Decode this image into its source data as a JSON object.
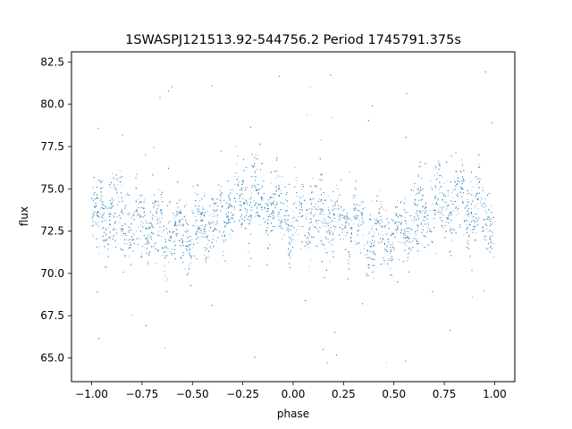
{
  "chart_data": {
    "type": "scatter",
    "title": "1SWASPJ121513.92-544756.2 Period 1745791.375s",
    "xlabel": "phase",
    "ylabel": "flux",
    "xlim": [
      -1.1,
      1.1
    ],
    "ylim": [
      63.6,
      83.1
    ],
    "xticks": [
      -1.0,
      -0.75,
      -0.5,
      -0.25,
      0.0,
      0.25,
      0.5,
      0.75,
      1.0
    ],
    "xtick_labels": [
      "−1.00",
      "−0.75",
      "−0.50",
      "−0.25",
      "0.00",
      "0.25",
      "0.50",
      "0.75",
      "1.00"
    ],
    "yticks": [
      65.0,
      67.5,
      70.0,
      72.5,
      75.0,
      77.5,
      80.0,
      82.5
    ],
    "ytick_labels": [
      "65.0",
      "67.5",
      "70.0",
      "72.5",
      "75.0",
      "77.5",
      "80.0",
      "82.5"
    ],
    "grid": false,
    "marker_color": "#1f77b4",
    "series": [
      {
        "phase_flux_profile": [
          {
            "phase": -1.0,
            "flux_center": 73.2,
            "flux_spread": 2.2
          },
          {
            "phase": -0.9,
            "flux_center": 73.5,
            "flux_spread": 2.5
          },
          {
            "phase": -0.8,
            "flux_center": 73.0,
            "flux_spread": 2.5
          },
          {
            "phase": -0.7,
            "flux_center": 72.7,
            "flux_spread": 2.3
          },
          {
            "phase": -0.6,
            "flux_center": 72.2,
            "flux_spread": 2.2
          },
          {
            "phase": -0.5,
            "flux_center": 72.4,
            "flux_spread": 2.3
          },
          {
            "phase": -0.4,
            "flux_center": 73.0,
            "flux_spread": 2.2
          },
          {
            "phase": -0.3,
            "flux_center": 74.0,
            "flux_spread": 2.3
          },
          {
            "phase": -0.2,
            "flux_center": 74.5,
            "flux_spread": 2.6
          },
          {
            "phase": -0.1,
            "flux_center": 74.0,
            "flux_spread": 2.4
          },
          {
            "phase": 0.0,
            "flux_center": 73.2,
            "flux_spread": 2.2
          },
          {
            "phase": 0.1,
            "flux_center": 73.5,
            "flux_spread": 2.5
          },
          {
            "phase": 0.2,
            "flux_center": 73.0,
            "flux_spread": 2.5
          },
          {
            "phase": 0.3,
            "flux_center": 72.7,
            "flux_spread": 2.3
          },
          {
            "phase": 0.4,
            "flux_center": 72.2,
            "flux_spread": 2.2
          },
          {
            "phase": 0.5,
            "flux_center": 72.4,
            "flux_spread": 2.3
          },
          {
            "phase": 0.6,
            "flux_center": 73.0,
            "flux_spread": 2.2
          },
          {
            "phase": 0.7,
            "flux_center": 74.0,
            "flux_spread": 2.3
          },
          {
            "phase": 0.8,
            "flux_center": 74.5,
            "flux_spread": 2.6
          },
          {
            "phase": 0.9,
            "flux_center": 74.0,
            "flux_spread": 2.4
          },
          {
            "phase": 1.0,
            "flux_center": 73.2,
            "flux_spread": 2.2
          }
        ],
        "flux_outlier_range": [
          64.5,
          82.2
        ]
      }
    ]
  }
}
